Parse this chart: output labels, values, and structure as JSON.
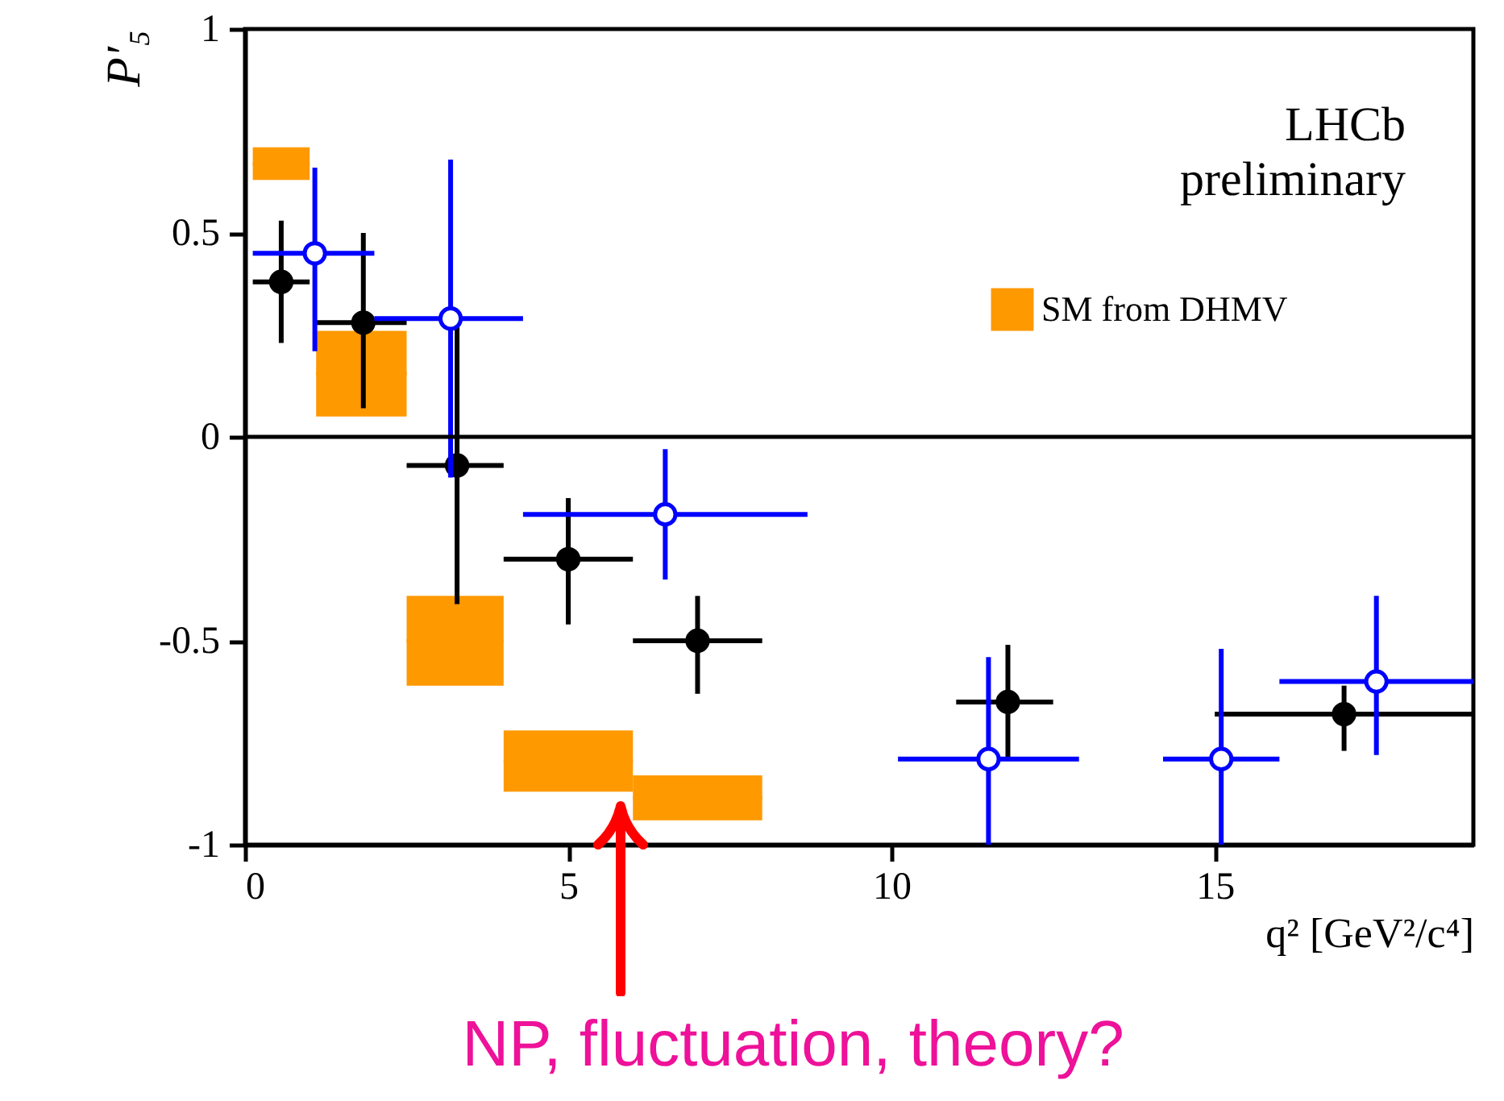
{
  "chart_data": {
    "type": "scatter",
    "xlabel": "q² [GeV²/c⁴]",
    "ylabel": "P′₅",
    "xlim": [
      0,
      19
    ],
    "ylim": [
      -1,
      1
    ],
    "xticks": [
      0,
      5,
      10,
      15
    ],
    "yticks": [
      -1,
      -0.5,
      0,
      0.5,
      1
    ],
    "grid": false,
    "legend": "top right",
    "marker": "circle",
    "annotations": [
      "LHCb preliminary",
      "NP, fluctuation, theory?"
    ],
    "ref_lines": [
      {
        "axis": "y",
        "value": 0,
        "color": "#000000"
      }
    ],
    "series": [
      {
        "type": "bar",
        "name": "SM from DHMV",
        "color": "#ff9900",
        "x": [
          0.56,
          1.8,
          3.25,
          5,
          7
        ],
        "base": [
          0.63,
          0.05,
          -0.61,
          -0.87,
          -0.94
        ],
        "values": [
          0.08,
          0.21,
          0.22,
          0.15,
          0.11
        ],
        "xerrors": [
          [
            0.12,
            1.0
          ],
          [
            1.1,
            2.5
          ],
          [
            2.5,
            4.0
          ],
          [
            4.0,
            6.0
          ],
          [
            6.0,
            8.0
          ]
        ]
      },
      {
        "color": "#000000",
        "x": [
          0.56,
          1.83,
          3.28,
          5.0,
          7.0,
          11.8,
          17.0
        ],
        "values": [
          0.38,
          0.28,
          -0.07,
          -0.3,
          -0.5,
          -0.65,
          -0.68
        ],
        "xerrors": [
          [
            0.12,
            1.0
          ],
          [
            1.1,
            2.5
          ],
          [
            2.5,
            4.0
          ],
          [
            4.0,
            6.0
          ],
          [
            6.0,
            8.0
          ],
          [
            11.0,
            12.5
          ],
          [
            15.0,
            19.0
          ]
        ],
        "errors": [
          [
            0.23,
            0.53
          ],
          [
            0.07,
            0.5
          ],
          [
            -0.41,
            0.28
          ],
          [
            -0.46,
            -0.15
          ],
          [
            -0.63,
            -0.39
          ],
          [
            -0.79,
            -0.51
          ],
          [
            -0.77,
            -0.61
          ]
        ]
      },
      {
        "color": "#0000ff",
        "x": [
          1.08,
          3.18,
          6.5,
          11.5,
          15.1,
          17.5
        ],
        "values": [
          0.45,
          0.29,
          -0.19,
          -0.79,
          -0.79,
          -0.6
        ],
        "xerrors": [
          [
            0.12,
            2.0
          ],
          [
            2.0,
            4.3
          ],
          [
            4.3,
            8.7
          ],
          [
            10.1,
            12.9
          ],
          [
            14.2,
            16.0
          ],
          [
            16.0,
            19.0
          ]
        ],
        "errors": [
          [
            0.21,
            0.66
          ],
          [
            -0.1,
            0.68
          ],
          [
            -0.35,
            -0.03
          ],
          [
            -1.0,
            -0.54
          ],
          [
            -1.0,
            -0.52
          ],
          [
            -0.78,
            -0.39
          ]
        ]
      }
    ]
  }
}
